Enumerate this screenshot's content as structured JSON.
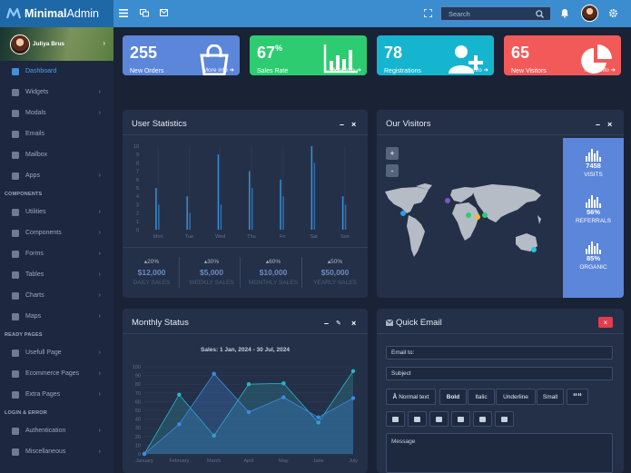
{
  "app": {
    "brand_bold": "Minimal",
    "brand_light": "Admin"
  },
  "search": {
    "placeholder": "Search"
  },
  "user": {
    "name": "Juliya Brus"
  },
  "sidebar": {
    "top_items": [
      {
        "label": "Dashboard",
        "icon": "dashboard-icon",
        "active": true,
        "chevron": false
      },
      {
        "label": "Widgets",
        "icon": "widgets-icon",
        "chevron": true
      },
      {
        "label": "Modals",
        "icon": "modals-icon",
        "chevron": true
      },
      {
        "label": "Emails",
        "icon": "emails-icon",
        "chevron": false
      },
      {
        "label": "Mailbox",
        "icon": "mailbox-icon",
        "chevron": false
      },
      {
        "label": "Apps",
        "icon": "apps-icon",
        "chevron": true
      }
    ],
    "components_header": "COMPONENTS",
    "component_items": [
      {
        "label": "Utilities",
        "icon": "utilities-icon"
      },
      {
        "label": "Components",
        "icon": "components-icon"
      },
      {
        "label": "Forms",
        "icon": "forms-icon"
      },
      {
        "label": "Tables",
        "icon": "tables-icon"
      },
      {
        "label": "Charts",
        "icon": "charts-icon"
      },
      {
        "label": "Maps",
        "icon": "maps-icon"
      }
    ],
    "ready_header": "READY PAGES",
    "ready_items": [
      {
        "label": "Usefull Page",
        "icon": "page-icon"
      },
      {
        "label": "Ecommerce Pages",
        "icon": "ecommerce-icon"
      },
      {
        "label": "Extra Pages",
        "icon": "extra-pages-icon"
      }
    ],
    "login_header": "LOGIN & ERROR",
    "login_items": [
      {
        "label": "Authentication",
        "icon": "lock-icon"
      },
      {
        "label": "Miscellaneous",
        "icon": "misc-icon"
      }
    ]
  },
  "stats": [
    {
      "value": "255",
      "suffix": "",
      "label": "New Orders",
      "more": "More info",
      "color": "#5b86d9",
      "icon": "shopping-bag-icon"
    },
    {
      "value": "67",
      "suffix": "%",
      "label": "Sales Rate",
      "more": "More info",
      "color": "#2ecc71",
      "icon": "bar-chart-icon"
    },
    {
      "value": "78",
      "suffix": "",
      "label": "Registrations",
      "more": "More info",
      "color": "#15b4cf",
      "icon": "add-user-icon"
    },
    {
      "value": "65",
      "suffix": "",
      "label": "New Visitors",
      "more": "More info",
      "color": "#f25a5a",
      "icon": "pie-chart-icon"
    }
  ],
  "user_stats": {
    "title": "User Statistics",
    "kpis": [
      {
        "pct": "20%",
        "amount": "$12,000",
        "caption": "DAILY SALES"
      },
      {
        "pct": "30%",
        "amount": "$5,000",
        "caption": "WEEKLY SALES"
      },
      {
        "pct": "60%",
        "amount": "$10,000",
        "caption": "MONTHLY SALES"
      },
      {
        "pct": "50%",
        "amount": "$50,000",
        "caption": "YEARLY SALES"
      }
    ]
  },
  "visitors": {
    "title": "Our Visitors",
    "zoom_in": "+",
    "zoom_out": "-",
    "stats": [
      {
        "value": "7458",
        "caption": "VISITS"
      },
      {
        "value": "56%",
        "caption": "REFERRALS"
      },
      {
        "value": "85%",
        "caption": "ORGANIC"
      }
    ]
  },
  "monthly": {
    "title": "Monthly Status"
  },
  "quick_email": {
    "title": "Quick Email",
    "email_to_placeholder": "Email to:",
    "subject_placeholder": "Subject",
    "message_placeholder": "Message",
    "toolbar": {
      "normal": "Normal text",
      "bold": "Bold",
      "italic": "Italic",
      "underline": "Underline",
      "small": "Small",
      "quote": "““"
    }
  },
  "chart_data": [
    {
      "type": "bar",
      "title": "",
      "categories": [
        "Mon",
        "Tue",
        "Wed",
        "Thu",
        "Fri",
        "Sat",
        "Sun"
      ],
      "ylim": [
        0,
        10
      ],
      "yticks": [
        0,
        1,
        2,
        3,
        4,
        5,
        6,
        7,
        8,
        9,
        10
      ],
      "series": [
        {
          "values": [
            5,
            4,
            9,
            7,
            6,
            10,
            4
          ]
        },
        {
          "values": [
            3,
            2,
            3,
            5,
            4,
            8,
            3
          ]
        }
      ]
    },
    {
      "type": "area",
      "title": "Sales: 1 Jan, 2024 - 30 Jul, 2024",
      "categories": [
        "January",
        "February",
        "March",
        "April",
        "May",
        "June",
        "July"
      ],
      "ylim": [
        0,
        100
      ],
      "yticks": [
        0,
        10,
        20,
        30,
        40,
        50,
        60,
        70,
        80,
        90,
        100
      ],
      "series": [
        {
          "values": [
            0,
            68,
            21,
            80,
            81,
            36,
            95
          ]
        },
        {
          "values": [
            0,
            34,
            92,
            48,
            65,
            42,
            64
          ]
        }
      ]
    }
  ]
}
